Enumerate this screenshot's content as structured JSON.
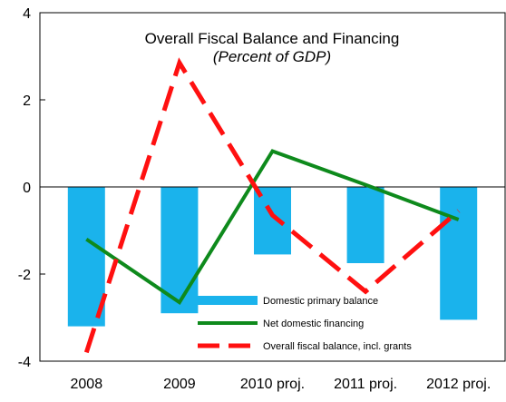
{
  "chart_data": {
    "type": "bar",
    "title": "Overall Fiscal Balance and Financing",
    "subtitle": "(Percent of GDP)",
    "xlabel": "",
    "ylabel": "",
    "categories": [
      "2008",
      "2009",
      "2010 proj.",
      "2011 proj.",
      "2012 proj."
    ],
    "ylim": [
      -4,
      4
    ],
    "yticks": [
      4,
      2,
      0,
      -2,
      -4
    ],
    "grid": false,
    "legend_position": "bottom-center",
    "series": [
      {
        "name": "Domestic primary balance",
        "kind": "bar",
        "color": "#1ab3ec",
        "values": [
          -3.2,
          -2.9,
          -1.55,
          -1.75,
          -3.05
        ]
      },
      {
        "name": "Net domestic financing",
        "kind": "line",
        "style": "solid",
        "color": "#0e8a1c",
        "values": [
          -1.2,
          -2.65,
          0.82,
          0.05,
          -0.75
        ]
      },
      {
        "name": "Overall fiscal balance, incl. grants",
        "kind": "line",
        "style": "dashed",
        "color": "#ff1010",
        "values": [
          -3.8,
          2.85,
          -0.65,
          -2.4,
          -0.55
        ]
      }
    ]
  }
}
